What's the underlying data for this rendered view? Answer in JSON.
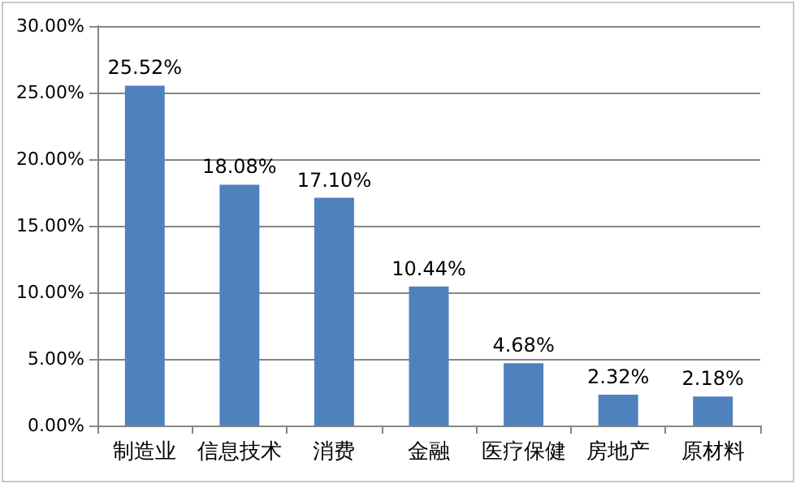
{
  "chart_data": {
    "type": "bar",
    "categories": [
      "制造业",
      "信息技术",
      "消费",
      "金融",
      "医疗保健",
      "房地产",
      "原材料"
    ],
    "values": [
      25.52,
      18.08,
      17.1,
      10.44,
      4.68,
      2.32,
      2.18
    ],
    "value_labels": [
      "25.52%",
      "18.08%",
      "17.10%",
      "10.44%",
      "4.68%",
      "2.32%",
      "2.18%"
    ],
    "color": "#4f81bd",
    "ylim": [
      0,
      30
    ],
    "yticks": [
      {
        "value": 0,
        "label": "0.00%"
      },
      {
        "value": 5,
        "label": "5.00%"
      },
      {
        "value": 10,
        "label": "10.00%"
      },
      {
        "value": 15,
        "label": "15.00%"
      },
      {
        "value": 20,
        "label": "20.00%"
      },
      {
        "value": 25,
        "label": "25.00%"
      },
      {
        "value": 30,
        "label": "30.00%"
      }
    ],
    "grid": "y"
  }
}
